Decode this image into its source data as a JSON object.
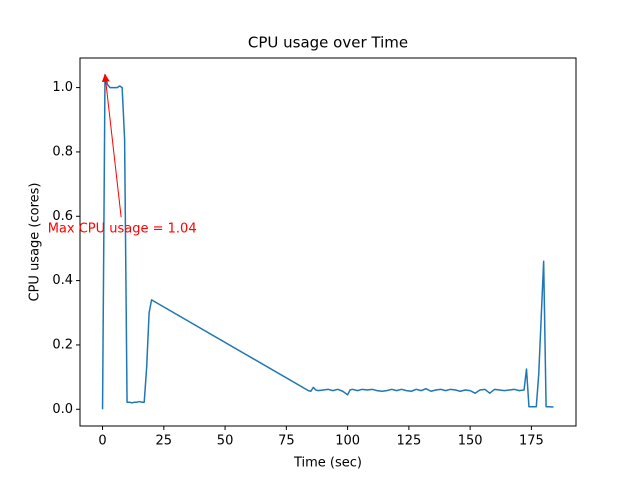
{
  "chart_data": {
    "type": "line",
    "title": "CPU usage over Time",
    "xlabel": "Time (sec)",
    "ylabel": "CPU usage (cores)",
    "xlim": [
      -9.2,
      193.2
    ],
    "ylim": [
      -0.052,
      1.092
    ],
    "xticks": [
      0,
      25,
      50,
      75,
      100,
      125,
      150,
      175
    ],
    "yticks": [
      {
        "value": 0,
        "label": "0.0"
      },
      {
        "value": 0.2,
        "label": "0.2"
      },
      {
        "value": 0.4,
        "label": "0.4"
      },
      {
        "value": 0.6,
        "label": "0.6"
      },
      {
        "value": 0.8,
        "label": "0.8"
      },
      {
        "value": 1.0,
        "label": "1.0"
      }
    ],
    "grid": false,
    "series": [
      {
        "color": "#1f77b4",
        "x": [
          0,
          1,
          2,
          3,
          4,
          5,
          6,
          7,
          8,
          9,
          10,
          11,
          12,
          13,
          14,
          15,
          16,
          17,
          18,
          19,
          20,
          84,
          85,
          86,
          87,
          88,
          90,
          92,
          94,
          96,
          98,
          100,
          101,
          102,
          104,
          106,
          108,
          110,
          112,
          114,
          116,
          118,
          120,
          122,
          124,
          126,
          128,
          130,
          132,
          134,
          136,
          138,
          140,
          142,
          144,
          146,
          148,
          150,
          152,
          154,
          156,
          158,
          160,
          162,
          164,
          166,
          168,
          170,
          172,
          173,
          174,
          176,
          177,
          178,
          180,
          181,
          182,
          184
        ],
        "values": [
          0,
          1.04,
          1.01,
          1.0,
          1.0,
          1.0,
          1.0,
          1.005,
          1.0,
          0.84,
          0.022,
          0.022,
          0.02,
          0.022,
          0.022,
          0.024,
          0.022,
          0.022,
          0.13,
          0.3,
          0.34,
          0.058,
          0.056,
          0.068,
          0.06,
          0.058,
          0.06,
          0.062,
          0.058,
          0.062,
          0.056,
          0.045,
          0.06,
          0.062,
          0.058,
          0.062,
          0.06,
          0.062,
          0.058,
          0.056,
          0.058,
          0.062,
          0.058,
          0.062,
          0.058,
          0.056,
          0.062,
          0.058,
          0.064,
          0.056,
          0.06,
          0.062,
          0.058,
          0.062,
          0.06,
          0.056,
          0.06,
          0.058,
          0.05,
          0.06,
          0.062,
          0.05,
          0.062,
          0.06,
          0.058,
          0.06,
          0.062,
          0.058,
          0.06,
          0.125,
          0.008,
          0.008,
          0.008,
          0.11,
          0.46,
          0.008,
          0.008,
          0.007
        ]
      }
    ],
    "annotation": {
      "text": "Max CPU usage = 1.04",
      "xy": [
        1,
        1.04
      ],
      "xytext": [
        8,
        0.56
      ],
      "color": "red"
    }
  }
}
